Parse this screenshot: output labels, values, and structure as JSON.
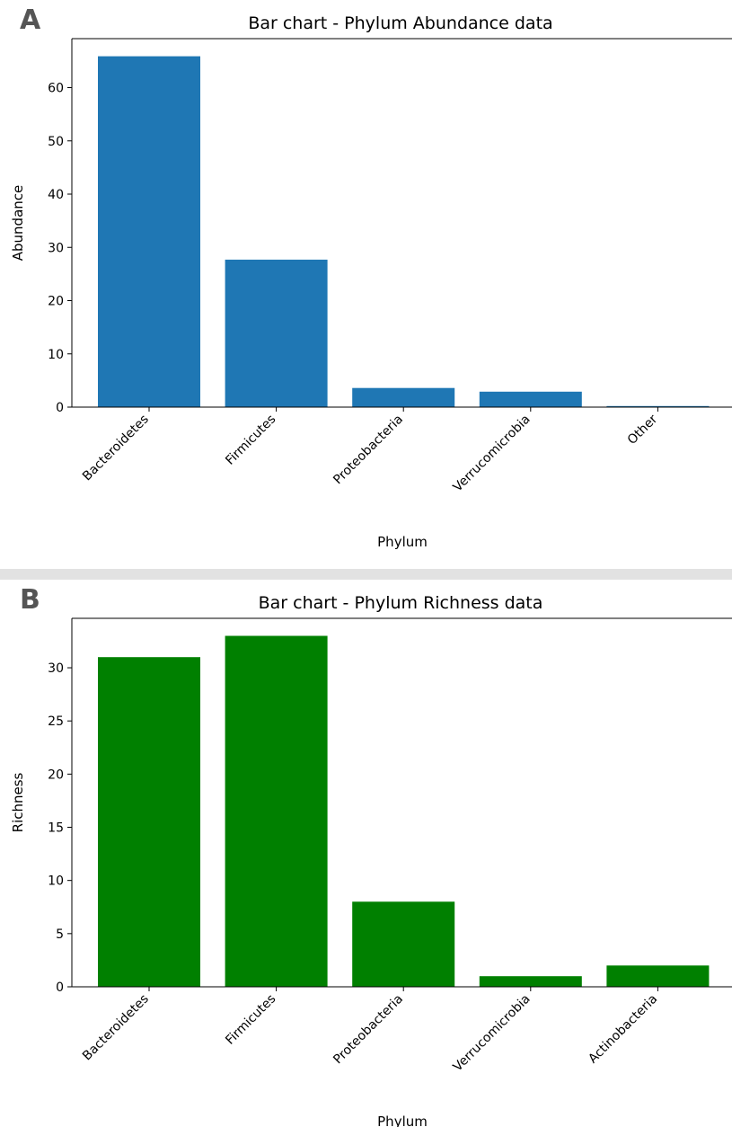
{
  "panels": [
    {
      "letter": "A",
      "chart_data": {
        "type": "bar",
        "title": "Bar chart - Phylum Abundance data",
        "xlabel": "Phylum",
        "ylabel": "Abundance",
        "categories": [
          "Bacteroidetes",
          "Firmicutes",
          "Proteobacteria",
          "Verrucomicrobia",
          "Other"
        ],
        "values": [
          65.9,
          27.7,
          3.6,
          2.9,
          0.2
        ],
        "ylim": [
          0,
          69.2
        ],
        "yticks": [
          0,
          10,
          20,
          30,
          40,
          50,
          60
        ],
        "color": "#1f77b4",
        "grid": false,
        "legend": false
      }
    },
    {
      "letter": "B",
      "chart_data": {
        "type": "bar",
        "title": "Bar chart - Phylum Richness data",
        "xlabel": "Phylum",
        "ylabel": "Richness",
        "categories": [
          "Bacteroidetes",
          "Firmicutes",
          "Proteobacteria",
          "Verrucomicrobia",
          "Actinobacteria"
        ],
        "values": [
          31,
          33,
          8,
          1,
          2
        ],
        "ylim": [
          0,
          34.65
        ],
        "yticks": [
          0,
          5,
          10,
          15,
          20,
          25,
          30
        ],
        "color": "#008000",
        "grid": false,
        "legend": false
      }
    }
  ]
}
